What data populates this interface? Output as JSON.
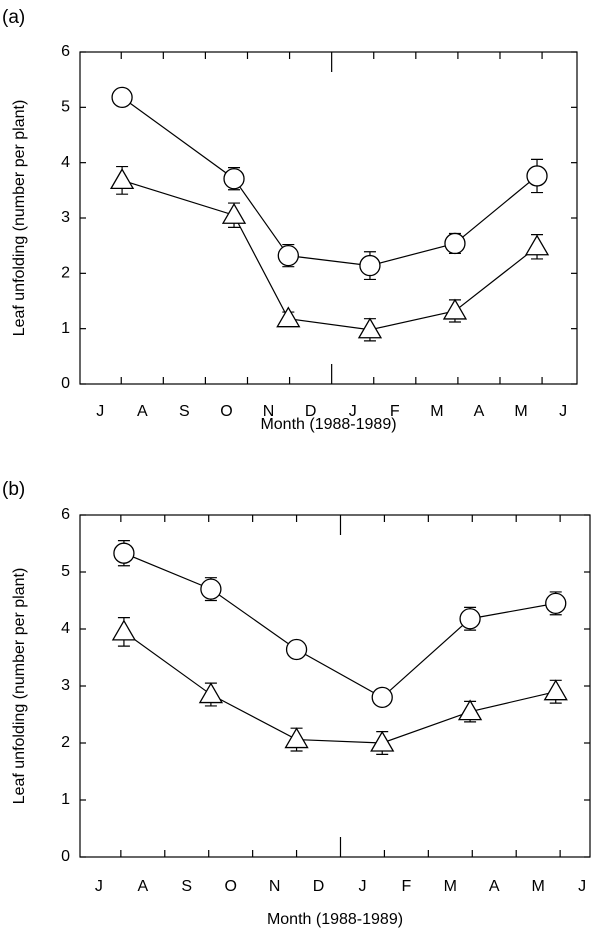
{
  "chart_data": [
    {
      "type": "line",
      "panel_label": "(a)",
      "xlabel": "Month (1988-1989)",
      "ylabel": "Leaf unfolding (number per plant)",
      "x": [
        0.52,
        3.18,
        4.47,
        6.41,
        8.43,
        10.38
      ],
      "series": [
        {
          "color": "#000000",
          "marker": "circle",
          "values": [
            5.18,
            3.71,
            2.32,
            2.14,
            2.54,
            3.76
          ],
          "errors": [
            0.15,
            0.2,
            0.2,
            0.25,
            0.18,
            0.3
          ]
        },
        {
          "color": "#000000",
          "marker": "triangle",
          "values": [
            3.68,
            3.05,
            1.18,
            0.98,
            1.32,
            2.48
          ],
          "errors": [
            0.25,
            0.22,
            0.12,
            0.2,
            0.2,
            0.22
          ]
        }
      ],
      "xlim": [
        -0.48,
        11.33
      ],
      "xticks": [
        {
          "value": 0,
          "label": "J"
        },
        {
          "value": 1,
          "label": "A"
        },
        {
          "value": 2,
          "label": "S"
        },
        {
          "value": 3,
          "label": "O"
        },
        {
          "value": 4,
          "label": "N"
        },
        {
          "value": 5,
          "label": "D"
        },
        {
          "value": 6,
          "label": "J"
        },
        {
          "value": 7,
          "label": "F"
        },
        {
          "value": 8,
          "label": "M"
        },
        {
          "value": 9,
          "label": "A"
        },
        {
          "value": 10,
          "label": "M"
        },
        {
          "value": 11,
          "label": "J"
        }
      ],
      "ylim": [
        0,
        6
      ],
      "yticks": [
        0,
        1,
        2,
        3,
        4,
        5,
        6
      ]
    },
    {
      "type": "line",
      "panel_label": "(b)",
      "xlabel": "Month (1988-1989)",
      "ylabel": "Leaf unfolding (number per plant)",
      "x": [
        0.57,
        2.55,
        4.5,
        6.45,
        8.45,
        10.4
      ],
      "series": [
        {
          "color": "#000000",
          "marker": "circle",
          "values": [
            5.33,
            4.7,
            3.64,
            2.8,
            4.18,
            4.45
          ],
          "errors": [
            0.22,
            0.2,
            0.1,
            0.1,
            0.2,
            0.2
          ]
        },
        {
          "color": "#000000",
          "marker": "triangle",
          "values": [
            3.95,
            2.85,
            2.06,
            2.0,
            2.55,
            2.9
          ],
          "errors": [
            0.25,
            0.2,
            0.2,
            0.2,
            0.18,
            0.2
          ]
        }
      ],
      "xlim": [
        -0.43,
        11.18
      ],
      "xticks": [
        {
          "value": 0,
          "label": "J"
        },
        {
          "value": 1,
          "label": "A"
        },
        {
          "value": 2,
          "label": "S"
        },
        {
          "value": 3,
          "label": "O"
        },
        {
          "value": 4,
          "label": "N"
        },
        {
          "value": 5,
          "label": "D"
        },
        {
          "value": 6,
          "label": "J"
        },
        {
          "value": 7,
          "label": "F"
        },
        {
          "value": 8,
          "label": "M"
        },
        {
          "value": 9,
          "label": "A"
        },
        {
          "value": 10,
          "label": "M"
        },
        {
          "value": 11,
          "label": "J"
        }
      ],
      "ylim": [
        0,
        6
      ],
      "yticks": [
        0,
        1,
        2,
        3,
        4,
        5,
        6
      ]
    }
  ]
}
